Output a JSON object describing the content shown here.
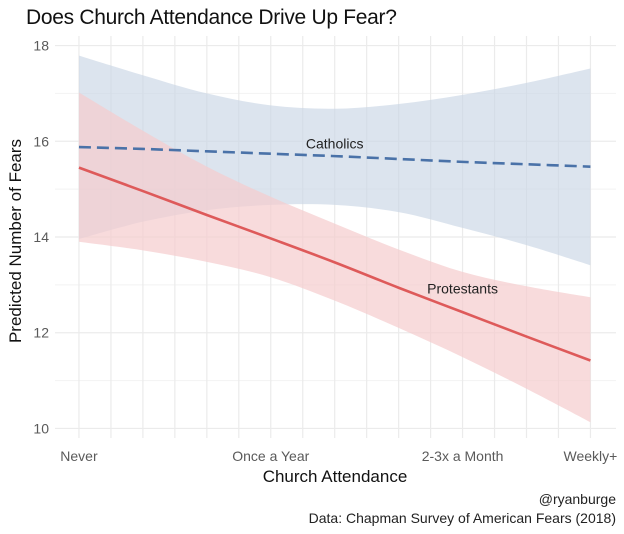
{
  "chart_data": {
    "type": "line",
    "title": "Does Church Attendance Drive Up Fear?",
    "xlabel": "Church Attendance",
    "ylabel": "Predicted Number of Fears",
    "caption": [
      "@ryanburge",
      "Data: Chapman Survey of American Fears (2018)"
    ],
    "xlim": [
      -0.375,
      8.4
    ],
    "ylim": [
      9.8,
      18.2
    ],
    "x_ticks": [
      {
        "value": 0,
        "label": "Never"
      },
      {
        "value": 3,
        "label": "Once a Year"
      },
      {
        "value": 6,
        "label": "2-3x a Month"
      },
      {
        "value": 8,
        "label": "Weekly+"
      }
    ],
    "x_grid_step": 0.5,
    "y_ticks": [
      {
        "value": 10,
        "label": "10"
      },
      {
        "value": 12,
        "label": "12"
      },
      {
        "value": 14,
        "label": "14"
      },
      {
        "value": 16,
        "label": "16"
      },
      {
        "value": 18,
        "label": "18"
      }
    ],
    "y_minor_ticks": [
      11,
      13,
      15,
      17
    ],
    "grid": true,
    "legend": "none (direct labels)",
    "series": [
      {
        "name": "Catholics",
        "line_style": "dashed",
        "color": "#4a72a8",
        "ribbon_color": "#c9d5e5",
        "label_position": {
          "x": 4.0,
          "y": 15.95
        },
        "x": [
          0,
          1,
          2,
          3,
          4,
          5,
          6,
          7,
          8
        ],
        "fit": [
          15.88,
          15.84,
          15.79,
          15.74,
          15.69,
          15.63,
          15.57,
          15.52,
          15.47
        ],
        "lower": [
          13.96,
          14.32,
          14.56,
          14.67,
          14.67,
          14.52,
          14.19,
          13.83,
          13.41
        ],
        "upper": [
          17.79,
          17.38,
          17.0,
          16.75,
          16.68,
          16.78,
          16.97,
          17.22,
          17.52
        ]
      },
      {
        "name": "Protestants",
        "line_style": "solid",
        "color": "#de5a5a",
        "ribbon_color": "#f5cccd",
        "label_position": {
          "x": 6.0,
          "y": 12.92
        },
        "x": [
          0,
          1,
          2,
          3,
          4,
          5,
          6,
          7,
          8
        ],
        "fit": [
          15.45,
          14.96,
          14.46,
          13.97,
          13.47,
          12.94,
          12.43,
          11.92,
          11.42
        ],
        "lower": [
          13.9,
          13.72,
          13.48,
          13.16,
          12.67,
          12.1,
          11.49,
          10.83,
          10.13
        ],
        "upper": [
          17.02,
          16.22,
          15.47,
          14.84,
          14.28,
          13.74,
          13.27,
          12.97,
          12.74
        ]
      }
    ]
  }
}
